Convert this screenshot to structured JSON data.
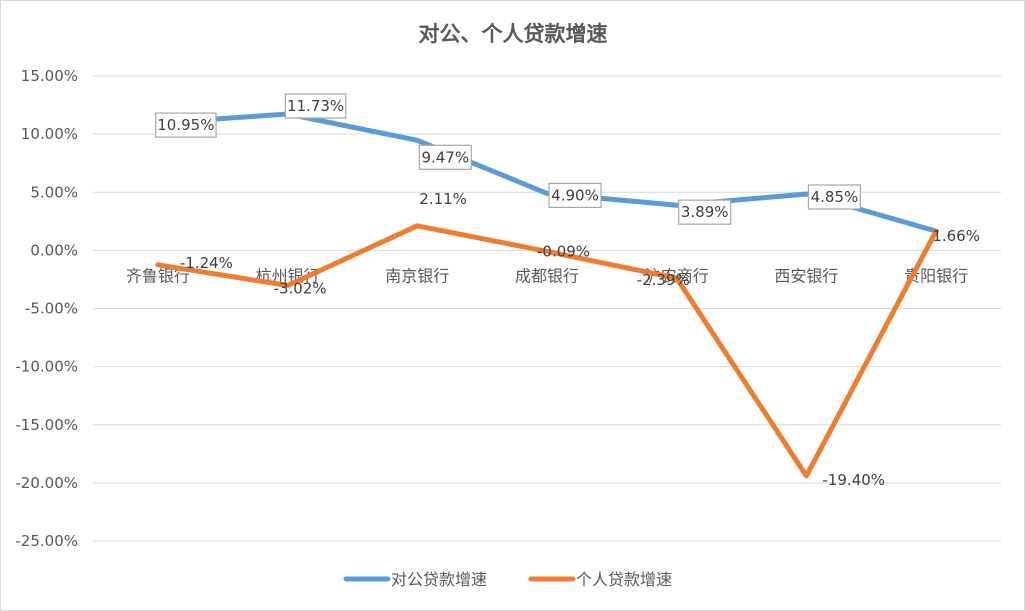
{
  "chart_data": {
    "type": "line",
    "title": "对公、个人贷款增速",
    "xlabel": "",
    "ylabel": "",
    "categories": [
      "齐鲁银行",
      "杭州银行",
      "南京银行",
      "成都银行",
      "沪农商行",
      "西安银行",
      "贵阳银行"
    ],
    "y_ticks": [
      "15.00%",
      "10.00%",
      "5.00%",
      "0.00%",
      "-5.00%",
      "-10.00%",
      "-15.00%",
      "-20.00%",
      "-25.00%"
    ],
    "ylim": [
      -25,
      15
    ],
    "grid": true,
    "legend_position": "bottom",
    "series": [
      {
        "name": "对公贷款增速",
        "color": "#5B9BD5",
        "values": [
          10.95,
          11.73,
          9.47,
          4.9,
          3.89,
          4.85,
          1.66
        ],
        "labels": [
          "10.95%",
          "11.73%",
          "9.47%",
          "4.90%",
          "3.89%",
          "4.85%",
          "1.66%"
        ]
      },
      {
        "name": "个人贷款增速",
        "color": "#ED7D31",
        "values": [
          -1.24,
          -3.02,
          2.11,
          -0.09,
          -2.39,
          -19.4,
          1.66
        ],
        "labels": [
          "-1.24%",
          "-3.02%",
          "2.11%",
          "-0.09%",
          "-2.39%",
          "-19.40%",
          ""
        ]
      }
    ]
  }
}
